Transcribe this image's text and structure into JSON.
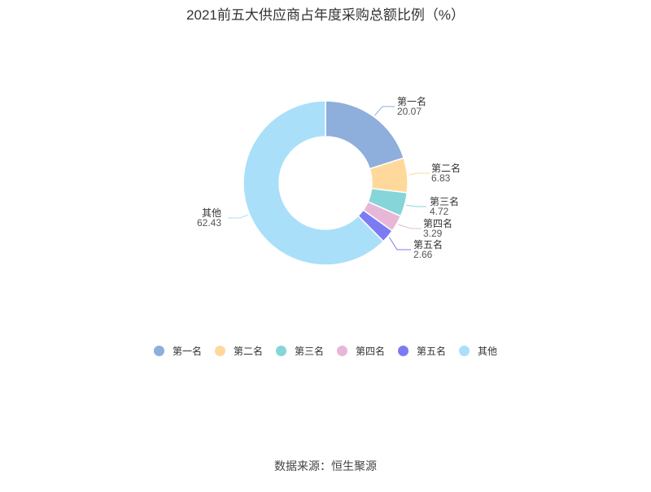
{
  "chart_data": {
    "type": "pie",
    "variant": "donut",
    "title": "2021前五大供应商占年度采购总额比例（%）",
    "categories": [
      "第一名",
      "第二名",
      "第三名",
      "第四名",
      "第五名",
      "其他"
    ],
    "values": [
      20.07,
      6.83,
      4.72,
      3.29,
      2.66,
      62.43
    ],
    "colors": [
      "#8eaedb",
      "#ffd99b",
      "#86d5d8",
      "#e8b7d8",
      "#7b7cf3",
      "#a9dff9"
    ],
    "legend": "bottom"
  },
  "source": "数据来源：恒生聚源"
}
